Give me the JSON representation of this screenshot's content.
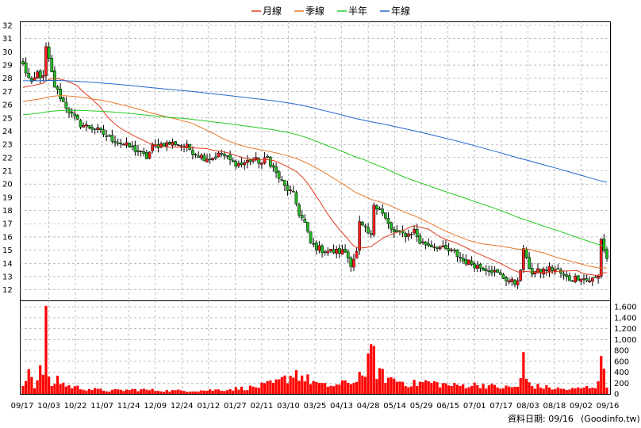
{
  "chart_data": {
    "type": "candlestick",
    "legend": [
      {
        "label": "月線",
        "color": "#e03c1f"
      },
      {
        "label": "季線",
        "color": "#e8782a"
      },
      {
        "label": "半年",
        "color": "#22cc22"
      },
      {
        "label": "年線",
        "color": "#2266cc"
      }
    ],
    "price_axis": {
      "min": 11.2,
      "max": 32.3,
      "ticks": [
        12,
        13,
        14,
        15,
        16,
        17,
        18,
        19,
        20,
        21,
        22,
        23,
        24,
        25,
        26,
        27,
        28,
        29,
        30,
        31,
        32
      ]
    },
    "volume_axis": {
      "min": 0,
      "max": 1720,
      "ticks": [
        0,
        200,
        400,
        600,
        800,
        1000,
        1200,
        1400,
        1600
      ],
      "tick_labels": [
        "0",
        "200",
        "400",
        "600",
        "800",
        "1,000",
        "1,200",
        "1,400",
        "1,600"
      ]
    },
    "x_labels": [
      "09/17",
      "10/03",
      "10/22",
      "11/07",
      "11/24",
      "12/09",
      "12/24",
      "01/12",
      "01/27",
      "02/11",
      "03/10",
      "03/25",
      "04/13",
      "04/28",
      "05/14",
      "05/29",
      "06/15",
      "07/01",
      "07/17",
      "08/03",
      "08/18",
      "09/02",
      "09/16"
    ],
    "price_anchors": [
      [
        0,
        29
      ],
      [
        3,
        27.5
      ],
      [
        5,
        28.4
      ],
      [
        7,
        28
      ],
      [
        8,
        30.3
      ],
      [
        11,
        27.4
      ],
      [
        14,
        26.2
      ],
      [
        17,
        25.2
      ],
      [
        20,
        24.5
      ],
      [
        25,
        24.2
      ],
      [
        30,
        23.5
      ],
      [
        35,
        23
      ],
      [
        39,
        22.6
      ],
      [
        43,
        22
      ],
      [
        45,
        22.8
      ],
      [
        48,
        23
      ],
      [
        53,
        23.1
      ],
      [
        57,
        22.8
      ],
      [
        60,
        22.3
      ],
      [
        63,
        22
      ],
      [
        66,
        22
      ],
      [
        69,
        22.3
      ],
      [
        73,
        21.6
      ],
      [
        76,
        21.5
      ],
      [
        80,
        21.9
      ],
      [
        83,
        21.6
      ],
      [
        85,
        22
      ],
      [
        88,
        20.8
      ],
      [
        91,
        19.8
      ],
      [
        94,
        19.2
      ],
      [
        96,
        17.8
      ],
      [
        98,
        17
      ],
      [
        100,
        15.5
      ],
      [
        104,
        15
      ],
      [
        108,
        14.9
      ],
      [
        112,
        14.9
      ],
      [
        114,
        14
      ],
      [
        116,
        14.8
      ],
      [
        117,
        17
      ],
      [
        121,
        16
      ],
      [
        122,
        18.5
      ],
      [
        124,
        18.2
      ],
      [
        128,
        16.5
      ],
      [
        131,
        16.2
      ],
      [
        134,
        16.2
      ],
      [
        136,
        16.5
      ],
      [
        138,
        15.6
      ],
      [
        141,
        15.4
      ],
      [
        144,
        15.3
      ],
      [
        147,
        15
      ],
      [
        150,
        14.8
      ],
      [
        153,
        14.2
      ],
      [
        156,
        14
      ],
      [
        159,
        13.7
      ],
      [
        162,
        13.6
      ],
      [
        165,
        13.2
      ],
      [
        168,
        12.8
      ],
      [
        171,
        12.5
      ],
      [
        173,
        13.3
      ],
      [
        174,
        15.2
      ],
      [
        175,
        14.2
      ],
      [
        177,
        13.3
      ],
      [
        180,
        13.4
      ],
      [
        183,
        13.6
      ],
      [
        186,
        13.5
      ],
      [
        188,
        13
      ],
      [
        190,
        12.8
      ],
      [
        192,
        12.9
      ],
      [
        194,
        13
      ],
      [
        196,
        12.7
      ],
      [
        198,
        12.8
      ],
      [
        200,
        13
      ],
      [
        201,
        15.9
      ],
      [
        202,
        15
      ],
      [
        203,
        14.4
      ]
    ],
    "volume_anchors": [
      [
        0,
        180
      ],
      [
        2,
        480
      ],
      [
        4,
        160
      ],
      [
        5,
        220
      ],
      [
        6,
        400
      ],
      [
        7,
        440
      ],
      [
        8,
        1620
      ],
      [
        9,
        230
      ],
      [
        10,
        160
      ],
      [
        12,
        280
      ],
      [
        15,
        150
      ],
      [
        20,
        110
      ],
      [
        25,
        80
      ],
      [
        30,
        60
      ],
      [
        40,
        80
      ],
      [
        50,
        60
      ],
      [
        60,
        60
      ],
      [
        70,
        80
      ],
      [
        80,
        120
      ],
      [
        88,
        200
      ],
      [
        92,
        300
      ],
      [
        95,
        400
      ],
      [
        98,
        280
      ],
      [
        100,
        250
      ],
      [
        104,
        150
      ],
      [
        110,
        160
      ],
      [
        114,
        240
      ],
      [
        116,
        200
      ],
      [
        117,
        640
      ],
      [
        118,
        280
      ],
      [
        122,
        800
      ],
      [
        123,
        420
      ],
      [
        126,
        300
      ],
      [
        130,
        250
      ],
      [
        135,
        180
      ],
      [
        140,
        220
      ],
      [
        150,
        150
      ],
      [
        160,
        170
      ],
      [
        165,
        120
      ],
      [
        170,
        120
      ],
      [
        172,
        140
      ],
      [
        173,
        260
      ],
      [
        174,
        640
      ],
      [
        175,
        260
      ],
      [
        177,
        150
      ],
      [
        185,
        100
      ],
      [
        190,
        80
      ],
      [
        195,
        110
      ],
      [
        199,
        150
      ],
      [
        200,
        260
      ],
      [
        201,
        700
      ],
      [
        202,
        460
      ],
      [
        203,
        150
      ]
    ],
    "date_label": "資料日期: 09/16",
    "source_label": "(Goodinfo.tw)"
  }
}
